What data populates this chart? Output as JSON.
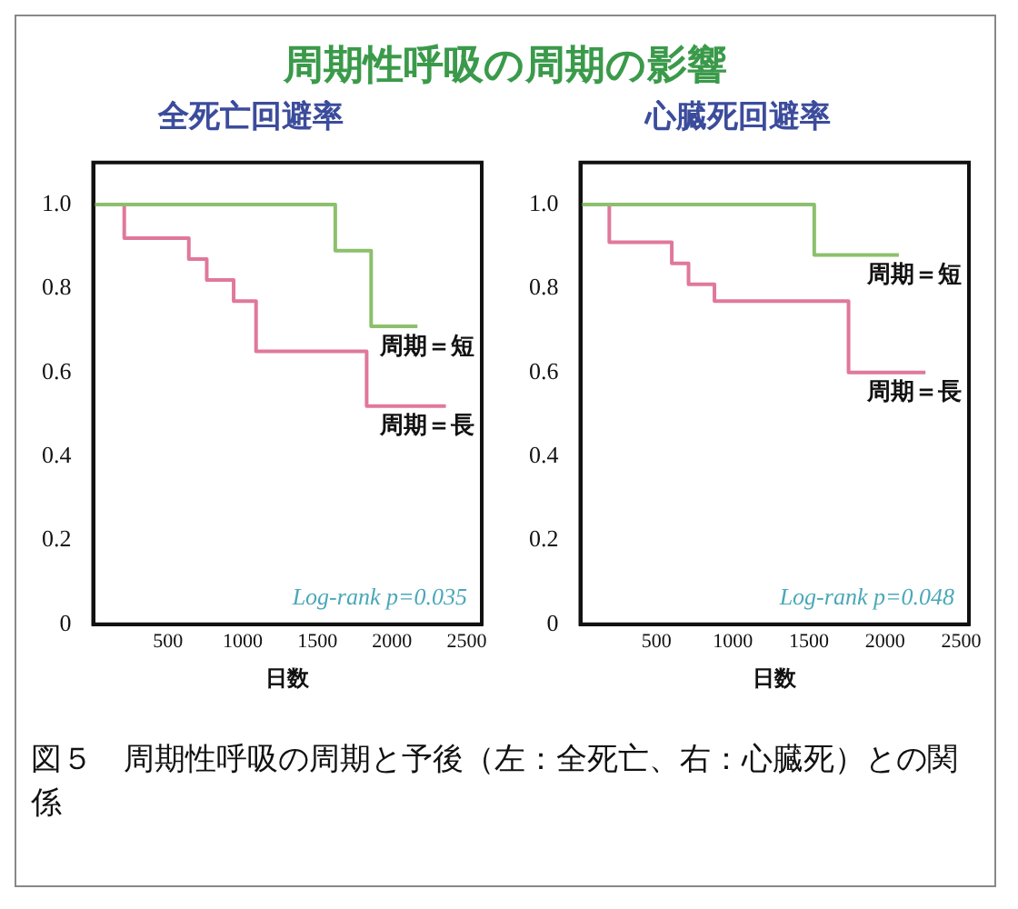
{
  "chart_data": [
    {
      "type": "other",
      "title": "周期性呼吸の周期の影響",
      "annotations": [
        "図５　周期性呼吸の周期と予後（左：全死亡、右：心臓死）との関係"
      ]
    },
    {
      "type": "step",
      "title": "全死亡回避率",
      "xlabel": "日数",
      "xlim": [
        0,
        2600
      ],
      "xticks": [
        500,
        1000,
        1500,
        2000,
        2500
      ],
      "ylim": [
        0,
        1.1
      ],
      "yticks": [
        {
          "value": 0,
          "label": "0"
        },
        {
          "value": 0.2,
          "label": "0.2"
        },
        {
          "value": 0.4,
          "label": "0.4"
        },
        {
          "value": 0.6,
          "label": "0.6"
        },
        {
          "value": 0.8,
          "label": "0.8"
        },
        {
          "value": 1,
          "label": "1.0"
        }
      ],
      "grid": false,
      "legend": false,
      "annotations": [
        "Log-rank p=0.035"
      ],
      "series": [
        {
          "name": "周期＝短",
          "color": "#8cc06c",
          "x": [
            0,
            1620,
            1860,
            2170
          ],
          "values": [
            1,
            0.89,
            0.71,
            0.71
          ]
        },
        {
          "name": "周期＝長",
          "color": "#e0789a",
          "x": [
            0,
            208,
            640,
            760,
            940,
            1090,
            1830,
            2360
          ],
          "values": [
            1,
            0.92,
            0.87,
            0.82,
            0.77,
            0.65,
            0.52,
            0.52
          ]
        }
      ]
    },
    {
      "type": "step",
      "title": "心臓死回避率",
      "xlabel": "日数",
      "xlim": [
        0,
        2550
      ],
      "xticks": [
        500,
        1000,
        1500,
        2000,
        2500
      ],
      "ylim": [
        0,
        1.1
      ],
      "yticks": [
        {
          "value": 0,
          "label": "0"
        },
        {
          "value": 0.2,
          "label": "0.2"
        },
        {
          "value": 0.4,
          "label": "0.4"
        },
        {
          "value": 0.6,
          "label": "0.6"
        },
        {
          "value": 0.8,
          "label": "0.8"
        },
        {
          "value": 1,
          "label": "1.0"
        }
      ],
      "grid": false,
      "legend": false,
      "annotations": [
        "Log-rank p=0.048"
      ],
      "series": [
        {
          "name": "周期＝短",
          "color": "#8cc06c",
          "x": [
            0,
            1535,
            2090
          ],
          "values": [
            1,
            0.88,
            0.88
          ]
        },
        {
          "name": "周期＝長",
          "color": "#e0789a",
          "x": [
            0,
            190,
            600,
            710,
            880,
            1760,
            2265
          ],
          "values": [
            1,
            0.91,
            0.86,
            0.81,
            0.77,
            0.6,
            0.6
          ]
        }
      ]
    }
  ]
}
